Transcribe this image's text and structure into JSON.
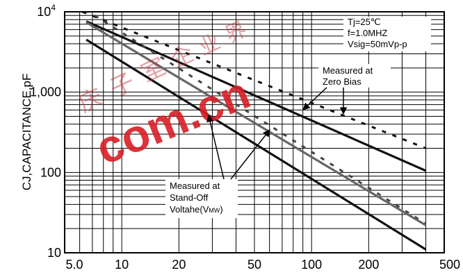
{
  "chart_data": {
    "type": "line",
    "xscale": "log",
    "yscale": "log",
    "xlim": [
      5,
      500
    ],
    "ylim": [
      10,
      10000
    ],
    "xticks": [
      "5.0",
      "10",
      "20",
      "50",
      "100",
      "200",
      "500"
    ],
    "xtick_values": [
      5,
      10,
      20,
      50,
      100,
      200,
      500
    ],
    "yticks": [
      {
        "value": 10000,
        "label": "10",
        "sup": "4"
      },
      {
        "value": 1000,
        "label": "1,000",
        "sup": ""
      },
      {
        "value": 100,
        "label": "100",
        "sup": ""
      },
      {
        "value": 10,
        "label": "10",
        "sup": ""
      }
    ],
    "ylabel": "CJ,CAPACITANCE,pF",
    "xlabel": "",
    "grid": true,
    "series": [
      {
        "style": "dotted",
        "color": "#111111",
        "points": [
          [
            6.2,
            10000
          ],
          [
            400,
            200
          ]
        ]
      },
      {
        "style": "solid",
        "color": "#111111",
        "points": [
          [
            6.5,
            7600
          ],
          [
            400,
            105
          ]
        ]
      },
      {
        "style": "dotted",
        "color": "#444444",
        "points": [
          [
            7.2,
            9000
          ],
          [
            400,
            23
          ]
        ]
      },
      {
        "style": "solid",
        "color": "#666666",
        "points": [
          [
            6.5,
            7400
          ],
          [
            400,
            22
          ]
        ]
      },
      {
        "style": "solid",
        "color": "#111111",
        "points": [
          [
            6.5,
            4500
          ],
          [
            400,
            11
          ]
        ]
      }
    ],
    "annotations": {
      "conditions": [
        "Tj=25℃",
        "f=1.0MHZ",
        "Vsig=50mVp-p"
      ],
      "zero_bias": [
        "Measured at",
        "Zero Bias"
      ],
      "standoff": [
        "Measured at",
        "Stand-Off",
        "Voltahe(V",
        "MW",
        ")"
      ]
    }
  },
  "watermark": {
    "text": "com.cn",
    "cn_chars": [
      "庆",
      "子",
      "室",
      "企",
      "业",
      "界"
    ],
    "color": "#d81f26"
  }
}
